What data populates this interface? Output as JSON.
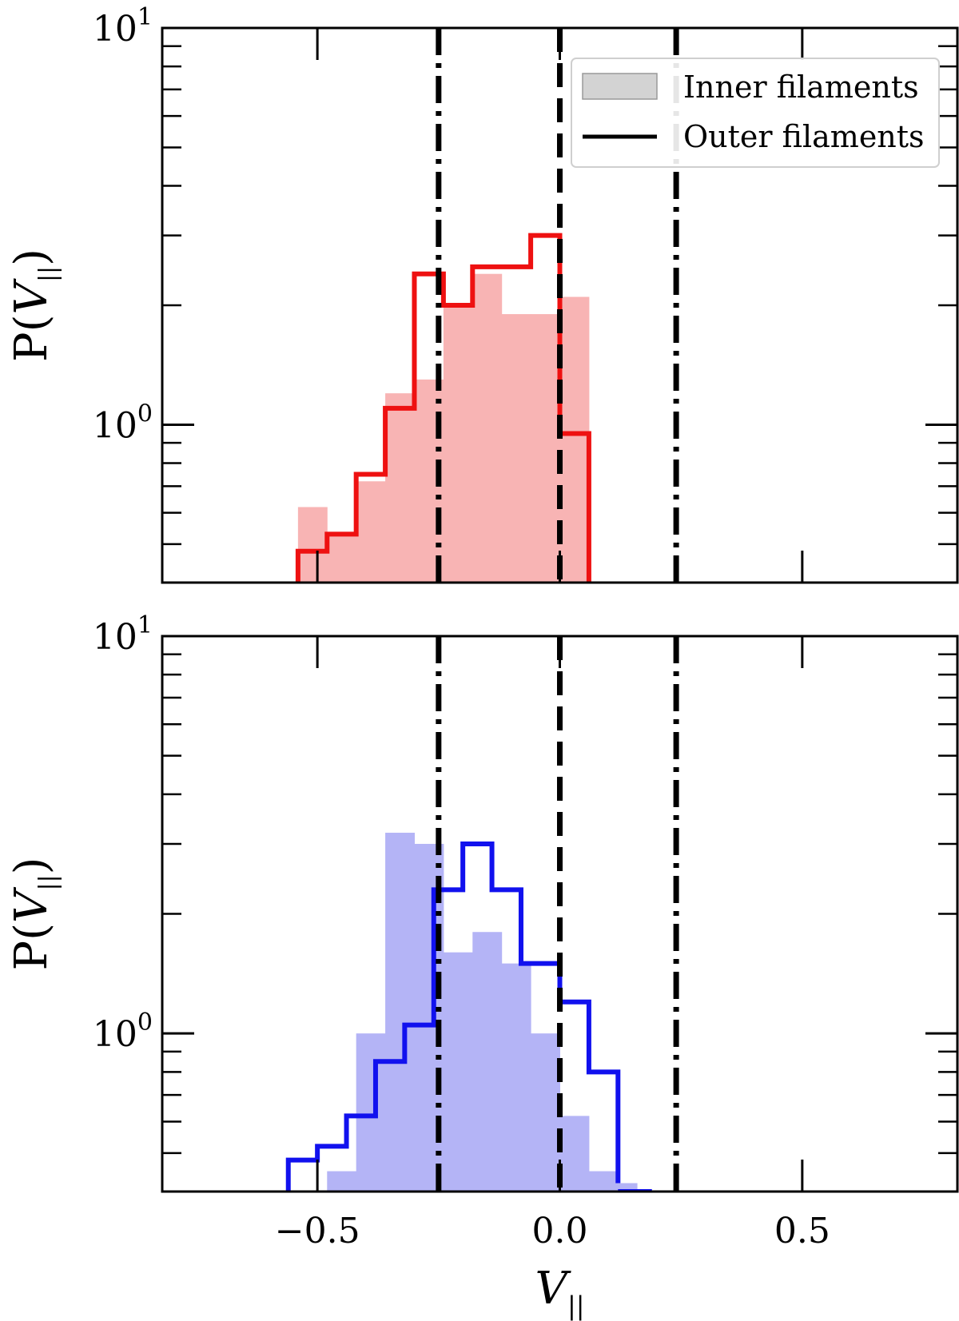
{
  "chart_data": [
    {
      "type": "bar",
      "panel": "top",
      "xlim": [
        -0.82,
        0.82
      ],
      "ylim": [
        0.4,
        10
      ],
      "yscale": "log",
      "grid": false,
      "xticks": [
        -0.5,
        0.0,
        0.5
      ],
      "xticklabels": [
        "−0.5",
        "0.0",
        "0.5"
      ],
      "yticks": [
        {
          "base": "10",
          "exp": "1",
          "value": 10
        },
        {
          "base": "10",
          "exp": "0",
          "value": 1
        }
      ],
      "ylabel": {
        "main": "P(",
        "var": "V",
        "sub": "||",
        "close": ")"
      },
      "xlabel": null,
      "vlines": [
        {
          "x": -0.25,
          "style": "dashdot"
        },
        {
          "x": 0.0,
          "style": "dashed"
        },
        {
          "x": 0.24,
          "style": "dashdot"
        }
      ],
      "legend": {
        "placement": "top-right",
        "entries": [
          {
            "label": "Inner filaments",
            "kind": "patch"
          },
          {
            "label": "Outer filaments",
            "kind": "line"
          }
        ]
      },
      "series": [
        {
          "role": "inner",
          "color": "#f8b4b4",
          "style": "filled",
          "edges": [
            -0.54,
            -0.48,
            -0.42,
            -0.36,
            -0.3,
            -0.24,
            -0.18,
            -0.12,
            -0.06,
            0.0,
            0.06
          ],
          "values": [
            0.62,
            0.53,
            0.72,
            1.2,
            1.3,
            2.0,
            2.4,
            1.9,
            1.9,
            2.1,
            0.42
          ]
        },
        {
          "role": "outer",
          "color": "#ee1111",
          "style": "step",
          "edges": [
            -0.54,
            -0.48,
            -0.42,
            -0.36,
            -0.3,
            -0.24,
            -0.18,
            -0.12,
            -0.06,
            0.0,
            0.06
          ],
          "values": [
            0.48,
            0.53,
            0.75,
            1.1,
            2.4,
            2.0,
            2.5,
            2.5,
            3.0,
            0.95,
            0.4
          ]
        }
      ]
    },
    {
      "type": "bar",
      "panel": "bottom",
      "xlim": [
        -0.82,
        0.82
      ],
      "ylim": [
        0.4,
        10
      ],
      "yscale": "log",
      "grid": false,
      "xticks": [
        -0.5,
        0.0,
        0.5
      ],
      "xticklabels": [
        "−0.5",
        "0.0",
        "0.5"
      ],
      "yticks": [
        {
          "base": "10",
          "exp": "1",
          "value": 10
        },
        {
          "base": "10",
          "exp": "0",
          "value": 1
        }
      ],
      "ylabel": {
        "main": "P(",
        "var": "V",
        "sub": "||",
        "close": ")"
      },
      "xlabel": {
        "var": "V",
        "sub": "||"
      },
      "vlines": [
        {
          "x": -0.25,
          "style": "dashdot"
        },
        {
          "x": 0.0,
          "style": "dashed"
        },
        {
          "x": 0.24,
          "style": "dashdot"
        }
      ],
      "series": [
        {
          "role": "inner",
          "color": "#b4b4f6",
          "style": "filled",
          "edges": [
            -0.48,
            -0.42,
            -0.36,
            -0.3,
            -0.24,
            -0.18,
            -0.12,
            -0.06,
            0.0,
            0.06,
            0.12
          ],
          "values": [
            0.45,
            1.0,
            3.2,
            3.0,
            1.6,
            1.8,
            1.5,
            1.0,
            0.62,
            0.45,
            0.42
          ],
          "tail": {
            "x": [
              0.12,
              0.16
            ],
            "value": 0.42
          }
        },
        {
          "role": "outer",
          "color": "#1111ee",
          "style": "step",
          "edges": [
            -0.56,
            -0.5,
            -0.44,
            -0.38,
            -0.32,
            -0.26,
            -0.2,
            -0.14,
            -0.08,
            0.0,
            0.06,
            0.12
          ],
          "values": [
            0.48,
            0.52,
            0.62,
            0.85,
            1.05,
            2.3,
            3.0,
            2.3,
            1.5,
            1.2,
            0.8,
            0.42
          ],
          "tail": {
            "x": [
              0.12,
              0.19
            ],
            "value": 0.4
          }
        }
      ]
    }
  ]
}
